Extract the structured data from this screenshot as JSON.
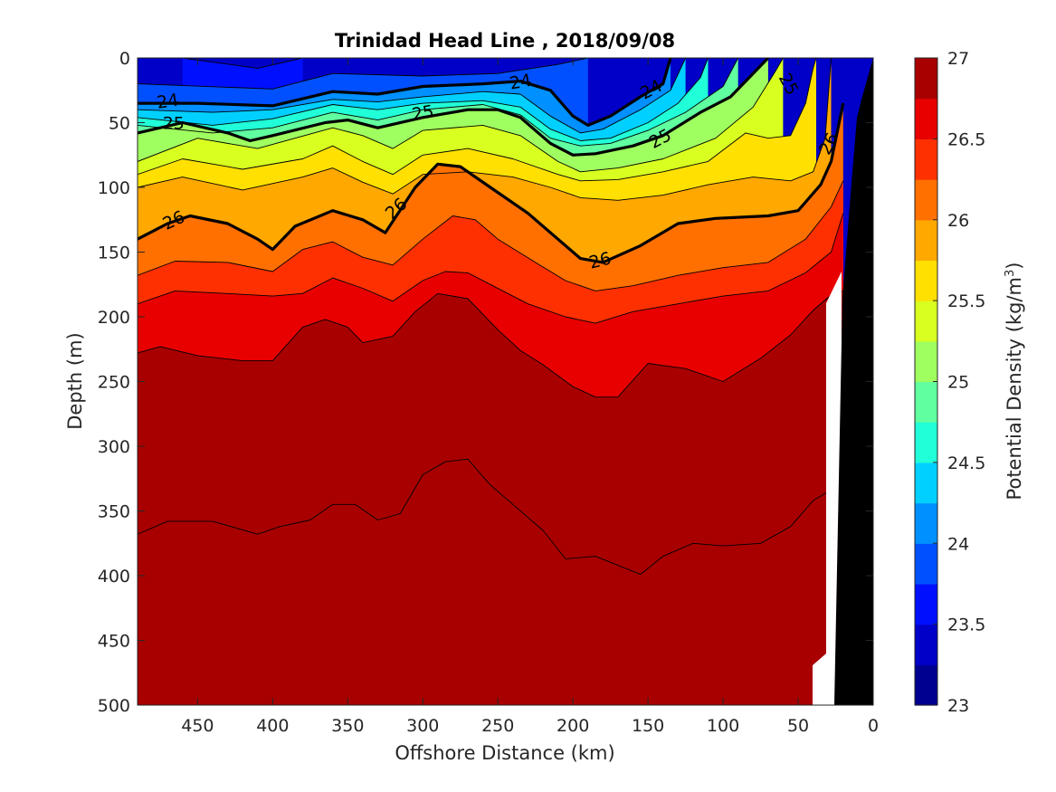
{
  "chart_data": {
    "type": "heatmap",
    "subtype": "filled-contour",
    "title": "Trinidad Head Line , 2018/09/08",
    "xlabel": "Offshore Distance (km)",
    "ylabel": "Depth (m)",
    "colorbar_label": "Potential Density (kg/m",
    "colorbar_label_sup": "3",
    "colorbar_label_close": ")",
    "xlim": [
      490,
      0
    ],
    "ylim": [
      0,
      500
    ],
    "x_reversed": true,
    "y_reversed": true,
    "x_ticks": [
      "450",
      "400",
      "350",
      "300",
      "250",
      "200",
      "150",
      "100",
      "50",
      "0"
    ],
    "y_ticks": [
      "0",
      "50",
      "100",
      "150",
      "200",
      "250",
      "300",
      "350",
      "400",
      "450",
      "500"
    ],
    "colorbar_range": [
      23,
      27
    ],
    "colorbar_step": 0.25,
    "colorbar_ticks": [
      "27",
      "26.5",
      "26",
      "25.5",
      "25",
      "24.5",
      "24",
      "23.5",
      "23"
    ],
    "colormap": [
      "#000090",
      "#0000c8",
      "#0010ff",
      "#0050ff",
      "#0090ff",
      "#00d0ff",
      "#20ffd8",
      "#60ffa0",
      "#a0ff60",
      "#d8ff20",
      "#ffe000",
      "#ffa800",
      "#ff7000",
      "#ff3000",
      "#e80000",
      "#a80000"
    ],
    "highlighted_contours": [
      24,
      25,
      26
    ],
    "contour_labels": [
      "24",
      "24",
      "24",
      "25",
      "25",
      "25",
      "25",
      "26",
      "26",
      "26",
      "26"
    ],
    "isopycnals": [
      {
        "level": 23.5,
        "points": [
          [
            460,
            0
          ],
          [
            410,
            8
          ],
          [
            380,
            0
          ]
        ]
      },
      {
        "level": 23.75,
        "points": [
          [
            490,
            20
          ],
          [
            400,
            24
          ],
          [
            360,
            12
          ],
          [
            300,
            14
          ],
          [
            250,
            12
          ],
          [
            210,
            5
          ],
          [
            190,
            0
          ]
        ]
      },
      {
        "level": 24,
        "points": [
          [
            490,
            35
          ],
          [
            450,
            35
          ],
          [
            400,
            37
          ],
          [
            360,
            26
          ],
          [
            330,
            28
          ],
          [
            300,
            22
          ],
          [
            260,
            20
          ],
          [
            235,
            18
          ],
          [
            215,
            25
          ],
          [
            200,
            45
          ],
          [
            190,
            52
          ],
          [
            175,
            45
          ],
          [
            155,
            30
          ],
          [
            140,
            20
          ],
          [
            135,
            0
          ]
        ]
      },
      {
        "level": 24.25,
        "points": [
          [
            490,
            40
          ],
          [
            440,
            42
          ],
          [
            400,
            40
          ],
          [
            360,
            32
          ],
          [
            330,
            34
          ],
          [
            300,
            30
          ],
          [
            260,
            26
          ],
          [
            235,
            28
          ],
          [
            215,
            45
          ],
          [
            195,
            58
          ],
          [
            180,
            55
          ],
          [
            155,
            40
          ],
          [
            135,
            25
          ],
          [
            125,
            0
          ]
        ]
      },
      {
        "level": 24.5,
        "points": [
          [
            490,
            46
          ],
          [
            440,
            52
          ],
          [
            400,
            47
          ],
          [
            360,
            36
          ],
          [
            330,
            40
          ],
          [
            300,
            35
          ],
          [
            260,
            33
          ],
          [
            235,
            38
          ],
          [
            215,
            55
          ],
          [
            195,
            64
          ],
          [
            175,
            62
          ],
          [
            150,
            50
          ],
          [
            130,
            35
          ],
          [
            115,
            15
          ],
          [
            110,
            0
          ]
        ]
      },
      {
        "level": 24.75,
        "points": [
          [
            490,
            52
          ],
          [
            440,
            58
          ],
          [
            400,
            54
          ],
          [
            360,
            42
          ],
          [
            330,
            48
          ],
          [
            300,
            40
          ],
          [
            260,
            36
          ],
          [
            235,
            44
          ],
          [
            215,
            62
          ],
          [
            195,
            68
          ],
          [
            175,
            66
          ],
          [
            150,
            56
          ],
          [
            125,
            42
          ],
          [
            100,
            22
          ],
          [
            90,
            0
          ]
        ]
      },
      {
        "level": 25,
        "points": [
          [
            490,
            58
          ],
          [
            460,
            50
          ],
          [
            430,
            58
          ],
          [
            415,
            64
          ],
          [
            400,
            60
          ],
          [
            365,
            50
          ],
          [
            350,
            48
          ],
          [
            330,
            54
          ],
          [
            300,
            46
          ],
          [
            270,
            40
          ],
          [
            250,
            40
          ],
          [
            235,
            46
          ],
          [
            215,
            66
          ],
          [
            200,
            75
          ],
          [
            185,
            74
          ],
          [
            160,
            68
          ],
          [
            140,
            60
          ],
          [
            115,
            42
          ],
          [
            95,
            30
          ],
          [
            80,
            12
          ],
          [
            70,
            0
          ]
        ]
      },
      {
        "level": 25.25,
        "points": [
          [
            490,
            80
          ],
          [
            450,
            62
          ],
          [
            410,
            70
          ],
          [
            360,
            54
          ],
          [
            340,
            60
          ],
          [
            320,
            70
          ],
          [
            300,
            56
          ],
          [
            260,
            52
          ],
          [
            235,
            60
          ],
          [
            210,
            80
          ],
          [
            195,
            88
          ],
          [
            170,
            85
          ],
          [
            140,
            78
          ],
          [
            105,
            62
          ],
          [
            80,
            38
          ],
          [
            65,
            10
          ],
          [
            60,
            0
          ]
        ]
      },
      {
        "level": 25.5,
        "points": [
          [
            490,
            90
          ],
          [
            460,
            78
          ],
          [
            420,
            86
          ],
          [
            380,
            78
          ],
          [
            360,
            68
          ],
          [
            340,
            80
          ],
          [
            320,
            90
          ],
          [
            300,
            75
          ],
          [
            270,
            70
          ],
          [
            240,
            78
          ],
          [
            210,
            90
          ],
          [
            195,
            95
          ],
          [
            170,
            94
          ],
          [
            140,
            88
          ],
          [
            110,
            80
          ],
          [
            85,
            58
          ],
          [
            70,
            62
          ],
          [
            55,
            60
          ],
          [
            45,
            35
          ],
          [
            40,
            8
          ],
          [
            38,
            0
          ]
        ]
      },
      {
        "level": 25.75,
        "points": [
          [
            490,
            100
          ],
          [
            460,
            92
          ],
          [
            420,
            102
          ],
          [
            380,
            92
          ],
          [
            360,
            85
          ],
          [
            340,
            96
          ],
          [
            320,
            105
          ],
          [
            300,
            90
          ],
          [
            270,
            88
          ],
          [
            240,
            92
          ],
          [
            215,
            100
          ],
          [
            195,
            108
          ],
          [
            170,
            110
          ],
          [
            140,
            106
          ],
          [
            110,
            98
          ],
          [
            80,
            92
          ],
          [
            55,
            95
          ],
          [
            40,
            88
          ],
          [
            32,
            62
          ],
          [
            28,
            0
          ]
        ]
      },
      {
        "level": 26,
        "points": [
          [
            490,
            140
          ],
          [
            470,
            128
          ],
          [
            455,
            122
          ],
          [
            430,
            128
          ],
          [
            410,
            140
          ],
          [
            400,
            148
          ],
          [
            385,
            130
          ],
          [
            360,
            118
          ],
          [
            340,
            125
          ],
          [
            325,
            135
          ],
          [
            305,
            100
          ],
          [
            290,
            82
          ],
          [
            275,
            84
          ],
          [
            255,
            100
          ],
          [
            230,
            120
          ],
          [
            210,
            140
          ],
          [
            195,
            155
          ],
          [
            180,
            158
          ],
          [
            155,
            145
          ],
          [
            130,
            128
          ],
          [
            105,
            124
          ],
          [
            70,
            122
          ],
          [
            50,
            118
          ],
          [
            35,
            98
          ],
          [
            28,
            80
          ],
          [
            20,
            35
          ]
        ]
      },
      {
        "level": 26.25,
        "points": [
          [
            490,
            168
          ],
          [
            465,
            157
          ],
          [
            430,
            158
          ],
          [
            400,
            165
          ],
          [
            380,
            148
          ],
          [
            360,
            142
          ],
          [
            340,
            154
          ],
          [
            320,
            160
          ],
          [
            300,
            140
          ],
          [
            280,
            122
          ],
          [
            265,
            125
          ],
          [
            250,
            140
          ],
          [
            225,
            158
          ],
          [
            205,
            172
          ],
          [
            185,
            180
          ],
          [
            160,
            176
          ],
          [
            130,
            168
          ],
          [
            100,
            162
          ],
          [
            70,
            158
          ],
          [
            45,
            140
          ],
          [
            28,
            115
          ],
          [
            20,
            95
          ]
        ]
      },
      {
        "level": 26.5,
        "points": [
          [
            490,
            190
          ],
          [
            465,
            180
          ],
          [
            430,
            182
          ],
          [
            400,
            184
          ],
          [
            380,
            182
          ],
          [
            360,
            170
          ],
          [
            340,
            178
          ],
          [
            320,
            188
          ],
          [
            300,
            172
          ],
          [
            285,
            165
          ],
          [
            270,
            166
          ],
          [
            255,
            175
          ],
          [
            230,
            190
          ],
          [
            205,
            200
          ],
          [
            185,
            205
          ],
          [
            160,
            196
          ],
          [
            130,
            190
          ],
          [
            100,
            184
          ],
          [
            70,
            180
          ],
          [
            45,
            166
          ],
          [
            28,
            150
          ],
          [
            20,
            120
          ]
        ]
      },
      {
        "level": 26.75,
        "points": [
          [
            490,
            228
          ],
          [
            475,
            223
          ],
          [
            450,
            230
          ],
          [
            420,
            234
          ],
          [
            400,
            234
          ],
          [
            380,
            208
          ],
          [
            365,
            202
          ],
          [
            350,
            208
          ],
          [
            340,
            220
          ],
          [
            320,
            215
          ],
          [
            305,
            196
          ],
          [
            290,
            182
          ],
          [
            270,
            186
          ],
          [
            250,
            210
          ],
          [
            235,
            226
          ],
          [
            220,
            237
          ],
          [
            200,
            254
          ],
          [
            185,
            262
          ],
          [
            170,
            262
          ],
          [
            150,
            236
          ],
          [
            125,
            240
          ],
          [
            100,
            250
          ],
          [
            75,
            232
          ],
          [
            55,
            214
          ],
          [
            40,
            195
          ],
          [
            30,
            185
          ],
          [
            20,
            180
          ]
        ]
      },
      {
        "level": 27,
        "points": [
          [
            490,
            368
          ],
          [
            470,
            358
          ],
          [
            440,
            358
          ],
          [
            410,
            368
          ],
          [
            395,
            362
          ],
          [
            375,
            357
          ],
          [
            360,
            345
          ],
          [
            345,
            345
          ],
          [
            330,
            357
          ],
          [
            315,
            352
          ],
          [
            300,
            322
          ],
          [
            285,
            312
          ],
          [
            270,
            310
          ],
          [
            255,
            330
          ],
          [
            240,
            345
          ],
          [
            220,
            365
          ],
          [
            205,
            387
          ],
          [
            185,
            385
          ],
          [
            170,
            392
          ],
          [
            155,
            399
          ],
          [
            140,
            385
          ],
          [
            120,
            375
          ],
          [
            100,
            377
          ],
          [
            75,
            375
          ],
          [
            55,
            362
          ],
          [
            40,
            342
          ],
          [
            30,
            335
          ],
          [
            25,
            360
          ],
          [
            22,
            370
          ]
        ]
      }
    ],
    "bottom_profile_km": [
      [
        0,
        0
      ],
      [
        18,
        90
      ],
      [
        27,
        500
      ]
    ],
    "no_data_region": "nearshore gap between last station and bottom"
  }
}
